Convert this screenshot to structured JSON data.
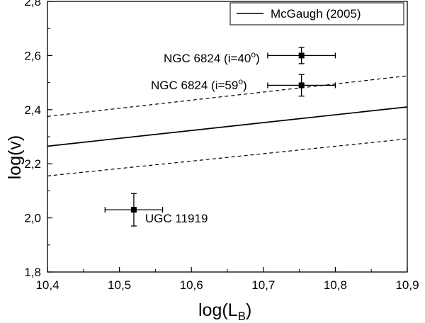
{
  "chart_data": {
    "type": "scatter",
    "xlabel": "log(L",
    "xlabel_sub": "B",
    "xlabel_close": ")",
    "ylabel": "log(v)",
    "xlim": [
      10.4,
      10.9
    ],
    "ylim": [
      1.8,
      2.8
    ],
    "xticks": [
      10.4,
      10.5,
      10.6,
      10.7,
      10.8,
      10.9
    ],
    "yticks": [
      1.8,
      2.0,
      2.2,
      2.4,
      2.6,
      2.8
    ],
    "xtick_labels": [
      "10,4",
      "10,5",
      "10,6",
      "10,7",
      "10,8",
      "10,9"
    ],
    "ytick_labels": [
      "1,8",
      "2,0",
      "2,2",
      "2,4",
      "2,6",
      "2,8"
    ],
    "grid": false,
    "legend_position": "top-right",
    "legend": [
      {
        "name": "McGaugh (2005)",
        "style": "solid"
      }
    ],
    "lines": [
      {
        "name": "McGaugh (2005)",
        "style": "solid",
        "x": [
          10.4,
          10.9
        ],
        "y": [
          2.265,
          2.41
        ]
      },
      {
        "style": "dashed",
        "x": [
          10.4,
          10.9
        ],
        "y": [
          2.375,
          2.525
        ]
      },
      {
        "style": "dashed",
        "x": [
          10.4,
          10.9
        ],
        "y": [
          2.155,
          2.292
        ]
      }
    ],
    "points": [
      {
        "x": 10.753,
        "y": 2.6,
        "xerr": 0.047,
        "yerr": 0.03,
        "label_main": "NGC 6824 (i=40",
        "label_sup": "o",
        "label_tail": ")"
      },
      {
        "x": 10.753,
        "y": 2.49,
        "xerr": 0.047,
        "yerr": 0.04,
        "label_main": "NGC 6824 (i=59",
        "label_sup": "o",
        "label_tail": ")"
      },
      {
        "x": 10.52,
        "y": 2.03,
        "xerr": 0.04,
        "yerr": 0.06,
        "label_main": "UGC 11919",
        "label_sup": "",
        "label_tail": ""
      }
    ]
  }
}
